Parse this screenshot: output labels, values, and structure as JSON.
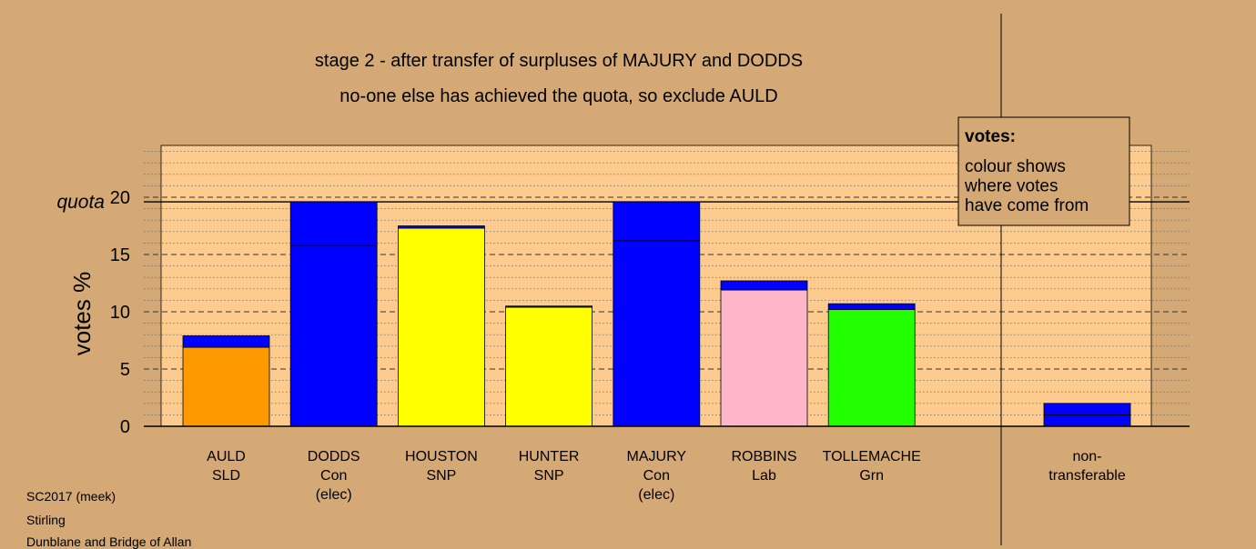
{
  "chart_data": {
    "type": "bar",
    "title": "stage 2 - after transfer of surpluses of MAJURY and DODDS",
    "subtitle": "no-one else has achieved the quota, so exclude AULD",
    "ylabel": "votes %",
    "quota_label": "quota",
    "quota": 19.6,
    "ylim": [
      0,
      24.5
    ],
    "yticks": [
      0,
      5,
      10,
      15,
      20
    ],
    "grid": "horizontal",
    "legend": {
      "position": "top-right",
      "title": "votes:",
      "lines": [
        "colour shows",
        "where votes",
        "have come from"
      ]
    },
    "categories": [
      {
        "lines": [
          "AULD",
          "SLD"
        ],
        "segments": [
          {
            "value": 6.9,
            "color": "#ff9900"
          },
          {
            "value": 1.0,
            "color": "#0000ff"
          }
        ]
      },
      {
        "lines": [
          "DODDS",
          "Con",
          "(elec)"
        ],
        "segments": [
          {
            "value": 15.8,
            "color": "#0000ff"
          },
          {
            "value": 3.8,
            "color": "#0000ff"
          }
        ]
      },
      {
        "lines": [
          "HOUSTON",
          "SNP"
        ],
        "segments": [
          {
            "value": 17.3,
            "color": "#ffff00"
          },
          {
            "value": 0.2,
            "color": "#0000ff"
          }
        ]
      },
      {
        "lines": [
          "HUNTER",
          "SNP"
        ],
        "segments": [
          {
            "value": 10.4,
            "color": "#ffff00"
          },
          {
            "value": 0.1,
            "color": "#0000ff"
          }
        ]
      },
      {
        "lines": [
          "MAJURY",
          "Con",
          "(elec)"
        ],
        "segments": [
          {
            "value": 16.2,
            "color": "#0000ff"
          },
          {
            "value": 3.4,
            "color": "#0000ff"
          }
        ]
      },
      {
        "lines": [
          "ROBBINS",
          "Lab"
        ],
        "segments": [
          {
            "value": 11.9,
            "color": "#ffb6c8"
          },
          {
            "value": 0.8,
            "color": "#0000ff"
          }
        ]
      },
      {
        "lines": [
          "TOLLEMACHE",
          "Grn"
        ],
        "segments": [
          {
            "value": 10.2,
            "color": "#22ff00"
          },
          {
            "value": 0.5,
            "color": "#0000ff"
          }
        ]
      }
    ],
    "nontransferable": {
      "lines": [
        "non-",
        "transferable"
      ],
      "segments": [
        {
          "value": 1.0,
          "color": "#0000ff"
        },
        {
          "value": 1.0,
          "color": "#0000ff"
        }
      ]
    }
  },
  "footer": {
    "line1": "SC2017 (meek)",
    "line2": "Stirling",
    "line3": "Dunblane and Bridge of Allan"
  }
}
